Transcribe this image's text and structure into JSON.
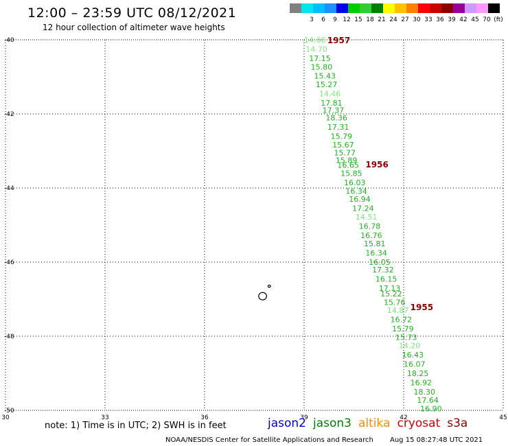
{
  "header": {
    "title": "12:00 – 23:59 UTC 08/12/2021",
    "subtitle": "12 hour collection of altimeter wave heights"
  },
  "legend": {
    "unit_label": "(ft)",
    "swatches": [
      {
        "label": "",
        "color": "#808080"
      },
      {
        "label": "3",
        "color": "#00e5ee"
      },
      {
        "label": "6",
        "color": "#00bfff"
      },
      {
        "label": "9",
        "color": "#1e90ff"
      },
      {
        "label": "12",
        "color": "#0000ee"
      },
      {
        "label": "15",
        "color": "#00cc00"
      },
      {
        "label": "18",
        "color": "#33cc33"
      },
      {
        "label": "21",
        "color": "#008000"
      },
      {
        "label": "24",
        "color": "#ffff00"
      },
      {
        "label": "27",
        "color": "#ffc000"
      },
      {
        "label": "30",
        "color": "#ff8000"
      },
      {
        "label": "33",
        "color": "#ff0000"
      },
      {
        "label": "36",
        "color": "#cc0000"
      },
      {
        "label": "39",
        "color": "#8b0000"
      },
      {
        "label": "42",
        "color": "#990099"
      },
      {
        "label": "45",
        "color": "#cc99ff"
      },
      {
        "label": "70",
        "color": "#ff99ff"
      },
      {
        "label": "",
        "color": "#000000"
      }
    ]
  },
  "axes": {
    "lat_ticks": [
      "-40",
      "-42",
      "-44",
      "-46",
      "-48",
      "-50"
    ],
    "lon_ticks": [
      "30",
      "33",
      "36",
      "39",
      "42",
      "45"
    ]
  },
  "track": {
    "colors": {
      "mid": "#1fb21f",
      "light": "#7de87d"
    },
    "passes": [
      {
        "label": "1957",
        "lon": 39.7,
        "lat": -40.0
      },
      {
        "label": "1956",
        "lon": 40.85,
        "lat": -43.35
      },
      {
        "label": "1955",
        "lon": 42.2,
        "lat": -47.2
      }
    ],
    "points": [
      {
        "v": "14.60",
        "lon": 39.0,
        "lat": -40.0,
        "tone": "light"
      },
      {
        "v": "14.70",
        "lon": 39.05,
        "lat": -40.25,
        "tone": "light"
      },
      {
        "v": "17.15",
        "lon": 39.15,
        "lat": -40.5,
        "tone": "mid"
      },
      {
        "v": "15.80",
        "lon": 39.2,
        "lat": -40.73,
        "tone": "mid"
      },
      {
        "v": "15.43",
        "lon": 39.3,
        "lat": -40.97,
        "tone": "mid"
      },
      {
        "v": "15.27",
        "lon": 39.35,
        "lat": -41.2,
        "tone": "mid"
      },
      {
        "v": "14.46",
        "lon": 39.45,
        "lat": -41.45,
        "tone": "light"
      },
      {
        "v": "17.81",
        "lon": 39.5,
        "lat": -41.7,
        "tone": "mid"
      },
      {
        "v": "17.37",
        "lon": 39.55,
        "lat": -41.9,
        "tone": "mid"
      },
      {
        "v": "18.36",
        "lon": 39.65,
        "lat": -42.1,
        "tone": "mid"
      },
      {
        "v": "17.31",
        "lon": 39.7,
        "lat": -42.35,
        "tone": "mid"
      },
      {
        "v": "15.79",
        "lon": 39.8,
        "lat": -42.6,
        "tone": "mid"
      },
      {
        "v": "15.67",
        "lon": 39.85,
        "lat": -42.83,
        "tone": "mid"
      },
      {
        "v": "15.77",
        "lon": 39.9,
        "lat": -43.05,
        "tone": "mid"
      },
      {
        "v": "15.89",
        "lon": 39.95,
        "lat": -43.25,
        "tone": "mid"
      },
      {
        "v": "16.65",
        "lon": 40.0,
        "lat": -43.38,
        "tone": "mid"
      },
      {
        "v": "15.85",
        "lon": 40.1,
        "lat": -43.6,
        "tone": "mid"
      },
      {
        "v": "16.03",
        "lon": 40.2,
        "lat": -43.85,
        "tone": "mid"
      },
      {
        "v": "16.34",
        "lon": 40.25,
        "lat": -44.08,
        "tone": "mid"
      },
      {
        "v": "16.94",
        "lon": 40.35,
        "lat": -44.3,
        "tone": "mid"
      },
      {
        "v": "17.24",
        "lon": 40.45,
        "lat": -44.55,
        "tone": "mid"
      },
      {
        "v": "14.51",
        "lon": 40.55,
        "lat": -44.78,
        "tone": "light"
      },
      {
        "v": "16.78",
        "lon": 40.65,
        "lat": -45.03,
        "tone": "mid"
      },
      {
        "v": "16.76",
        "lon": 40.7,
        "lat": -45.28,
        "tone": "mid"
      },
      {
        "v": "15.81",
        "lon": 40.8,
        "lat": -45.5,
        "tone": "mid"
      },
      {
        "v": "16.34",
        "lon": 40.85,
        "lat": -45.75,
        "tone": "mid"
      },
      {
        "v": "16.05",
        "lon": 40.95,
        "lat": -46.0,
        "tone": "mid"
      },
      {
        "v": "17.32",
        "lon": 41.05,
        "lat": -46.2,
        "tone": "mid"
      },
      {
        "v": "16.15",
        "lon": 41.15,
        "lat": -46.45,
        "tone": "mid"
      },
      {
        "v": "17.13",
        "lon": 41.25,
        "lat": -46.7,
        "tone": "mid"
      },
      {
        "v": "15.22",
        "lon": 41.3,
        "lat": -46.85,
        "tone": "mid"
      },
      {
        "v": "15.76",
        "lon": 41.4,
        "lat": -47.08,
        "tone": "mid"
      },
      {
        "v": "14.87",
        "lon": 41.5,
        "lat": -47.3,
        "tone": "light"
      },
      {
        "v": "16.72",
        "lon": 41.6,
        "lat": -47.55,
        "tone": "mid"
      },
      {
        "v": "15.79",
        "lon": 41.65,
        "lat": -47.8,
        "tone": "mid"
      },
      {
        "v": "15.73",
        "lon": 41.75,
        "lat": -48.03,
        "tone": "mid"
      },
      {
        "v": "14.20",
        "lon": 41.85,
        "lat": -48.25,
        "tone": "light"
      },
      {
        "v": "16.43",
        "lon": 41.95,
        "lat": -48.5,
        "tone": "mid"
      },
      {
        "v": "16.07",
        "lon": 42.0,
        "lat": -48.75,
        "tone": "mid"
      },
      {
        "v": "18.25",
        "lon": 42.1,
        "lat": -49.0,
        "tone": "mid"
      },
      {
        "v": "16.92",
        "lon": 42.2,
        "lat": -49.25,
        "tone": "mid"
      },
      {
        "v": "18.30",
        "lon": 42.3,
        "lat": -49.5,
        "tone": "mid"
      },
      {
        "v": "17.64",
        "lon": 42.4,
        "lat": -49.72,
        "tone": "mid"
      },
      {
        "v": "16.90",
        "lon": 42.5,
        "lat": -49.95,
        "tone": "mid"
      }
    ]
  },
  "islands": [
    {
      "name": "",
      "lon": 37.75,
      "lat": -46.92,
      "rx_deg": 0.12,
      "ry_deg": 0.1
    },
    {
      "name": "",
      "lon": 37.95,
      "lat": -46.65,
      "rx_deg": 0.04,
      "ry_deg": 0.03
    }
  ],
  "notes": {
    "text": "note:  1) Time is in UTC;  2) SWH is in feet"
  },
  "missions": [
    {
      "label": "jason2",
      "color": "#0000cc"
    },
    {
      "label": "jason3",
      "color": "#008000"
    },
    {
      "label": "altika",
      "color": "#ff8c00"
    },
    {
      "label": "cryosat",
      "color": "#cc0000"
    },
    {
      "label": "s3a",
      "color": "#8b0000"
    }
  ],
  "footer": {
    "left": "NOAA/NESDIS Center for Satellite Applications and Research",
    "right": "Aug 15 08:27:48 UTC 2021"
  }
}
